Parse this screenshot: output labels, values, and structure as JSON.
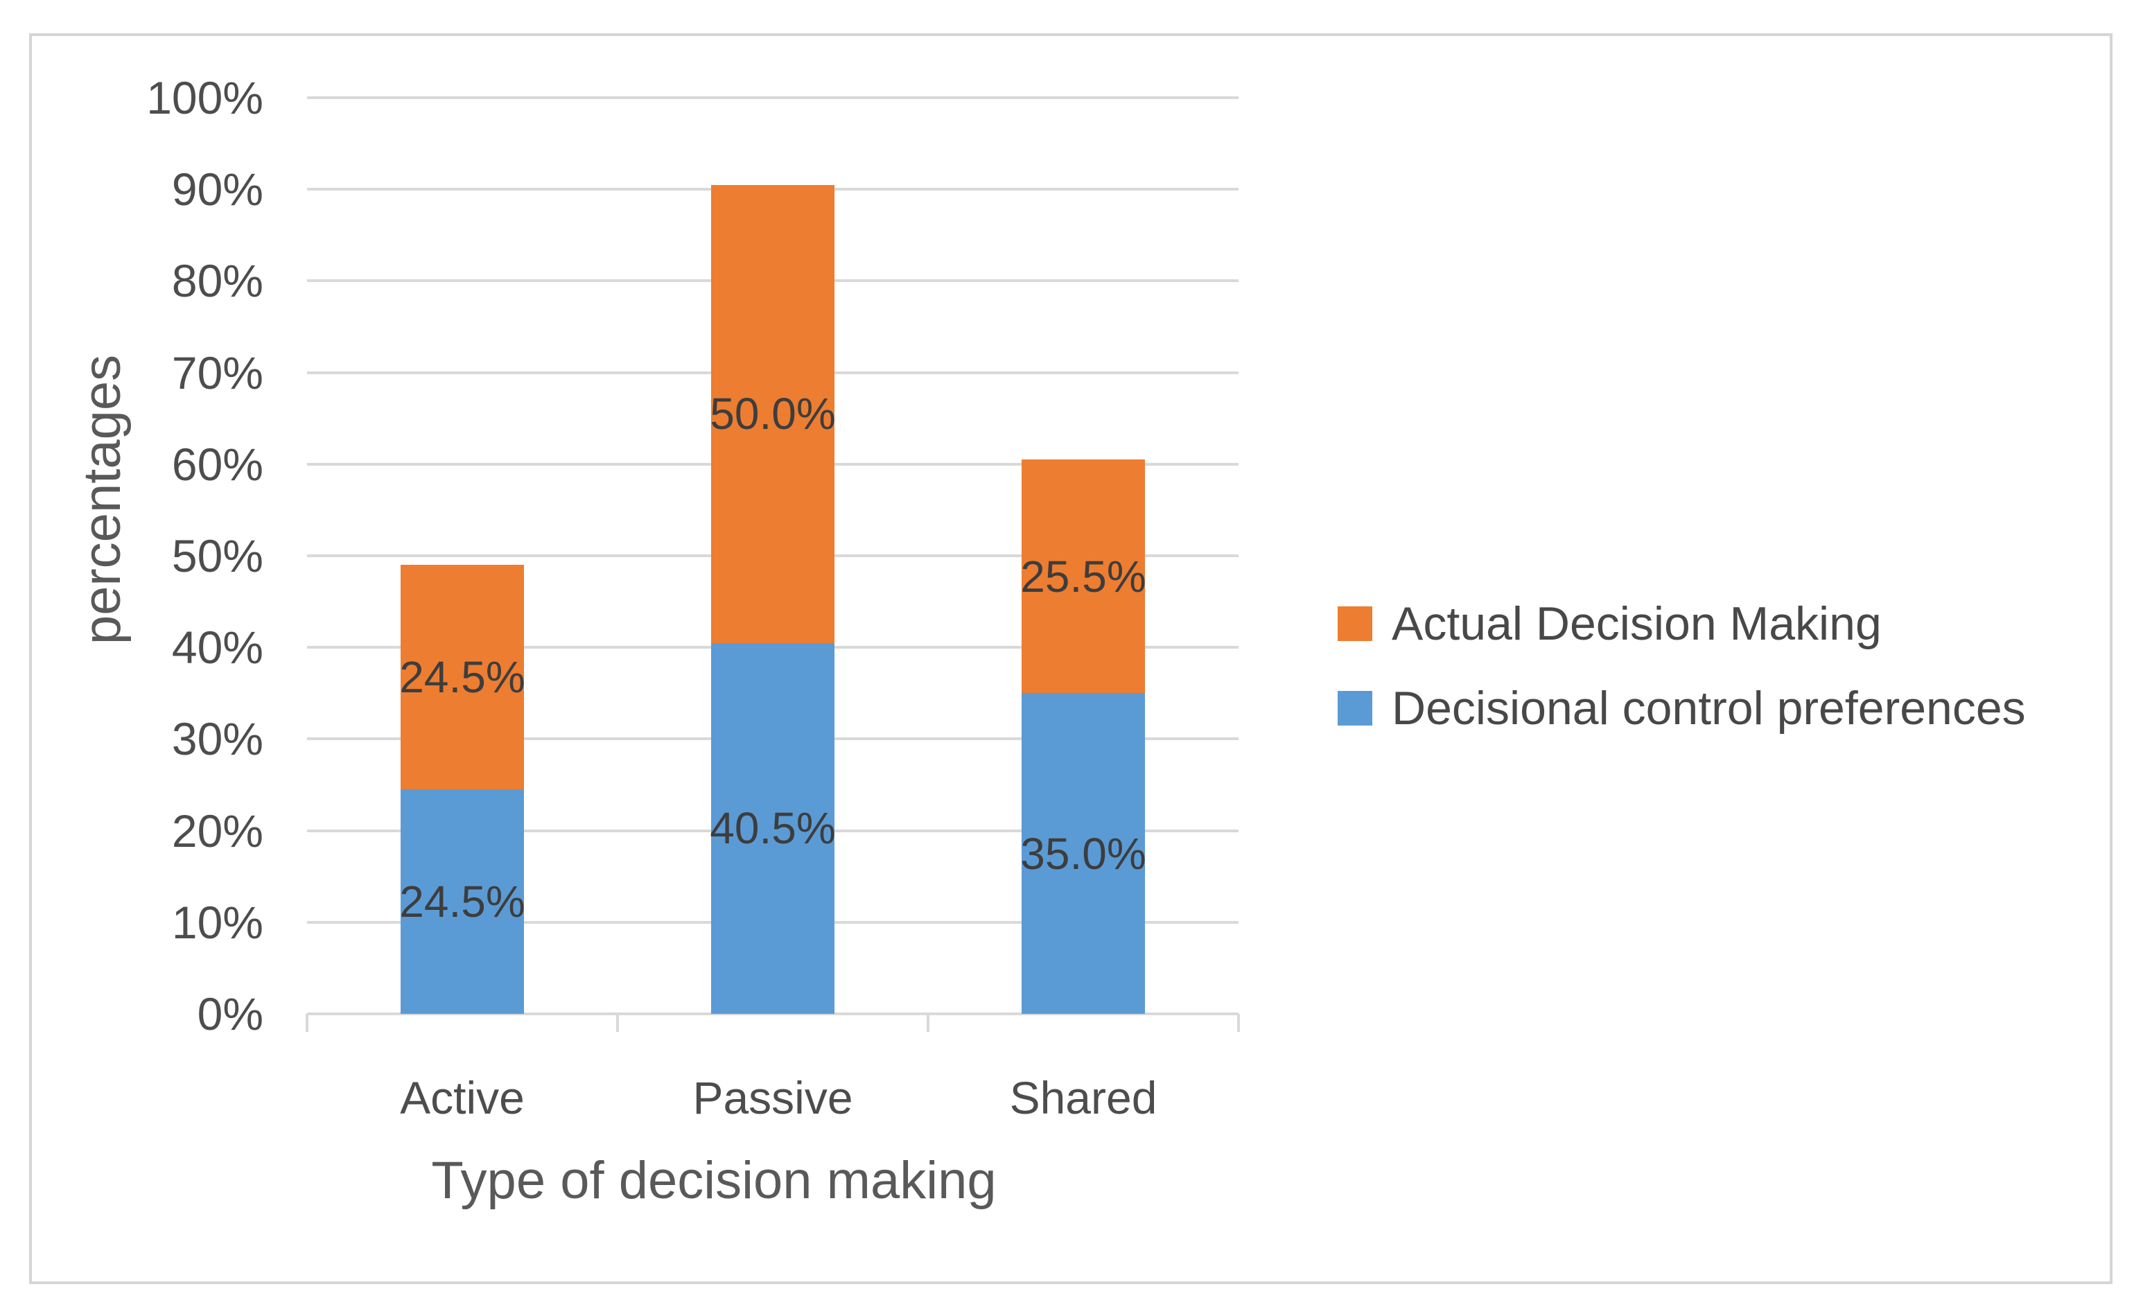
{
  "chart_data": {
    "type": "bar",
    "stacked": true,
    "title": "",
    "xlabel": "Type of decision making",
    "ylabel": "percentages",
    "categories": [
      "Active",
      "Passive",
      "Shared"
    ],
    "series": [
      {
        "name": "Decisional control preferences",
        "color": "#5B9BD5",
        "values": [
          24.5,
          40.5,
          35.0
        ],
        "labels": [
          "24.5%",
          "40.5%",
          "35.0%"
        ]
      },
      {
        "name": "Actual Decision Making",
        "color": "#ED7D31",
        "values": [
          24.5,
          50.0,
          25.5
        ],
        "labels": [
          "24.5%",
          "50.0%",
          "25.5%"
        ]
      }
    ],
    "totals": [
      49.0,
      90.5,
      60.5
    ],
    "ylim": [
      0,
      100
    ],
    "ytick_step": 10,
    "ytick_labels": [
      "0%",
      "10%",
      "20%",
      "30%",
      "40%",
      "50%",
      "60%",
      "70%",
      "80%",
      "90%",
      "100%"
    ],
    "grid": true,
    "legend_position": "right",
    "legend": [
      {
        "label": "Actual Decision Making",
        "color": "#ED7D31"
      },
      {
        "label": "Decisional control preferences",
        "color": "#5B9BD5"
      }
    ]
  },
  "colors": {
    "background": "#ffffff",
    "border": "#d5d5d5",
    "gridline": "#d9d9d9",
    "axis_line": "#d9d9d9",
    "tick_text": "#4d4d4d",
    "data_label_text": "#3d3d3d",
    "legend_text": "#484848",
    "title_text": "#595959"
  }
}
